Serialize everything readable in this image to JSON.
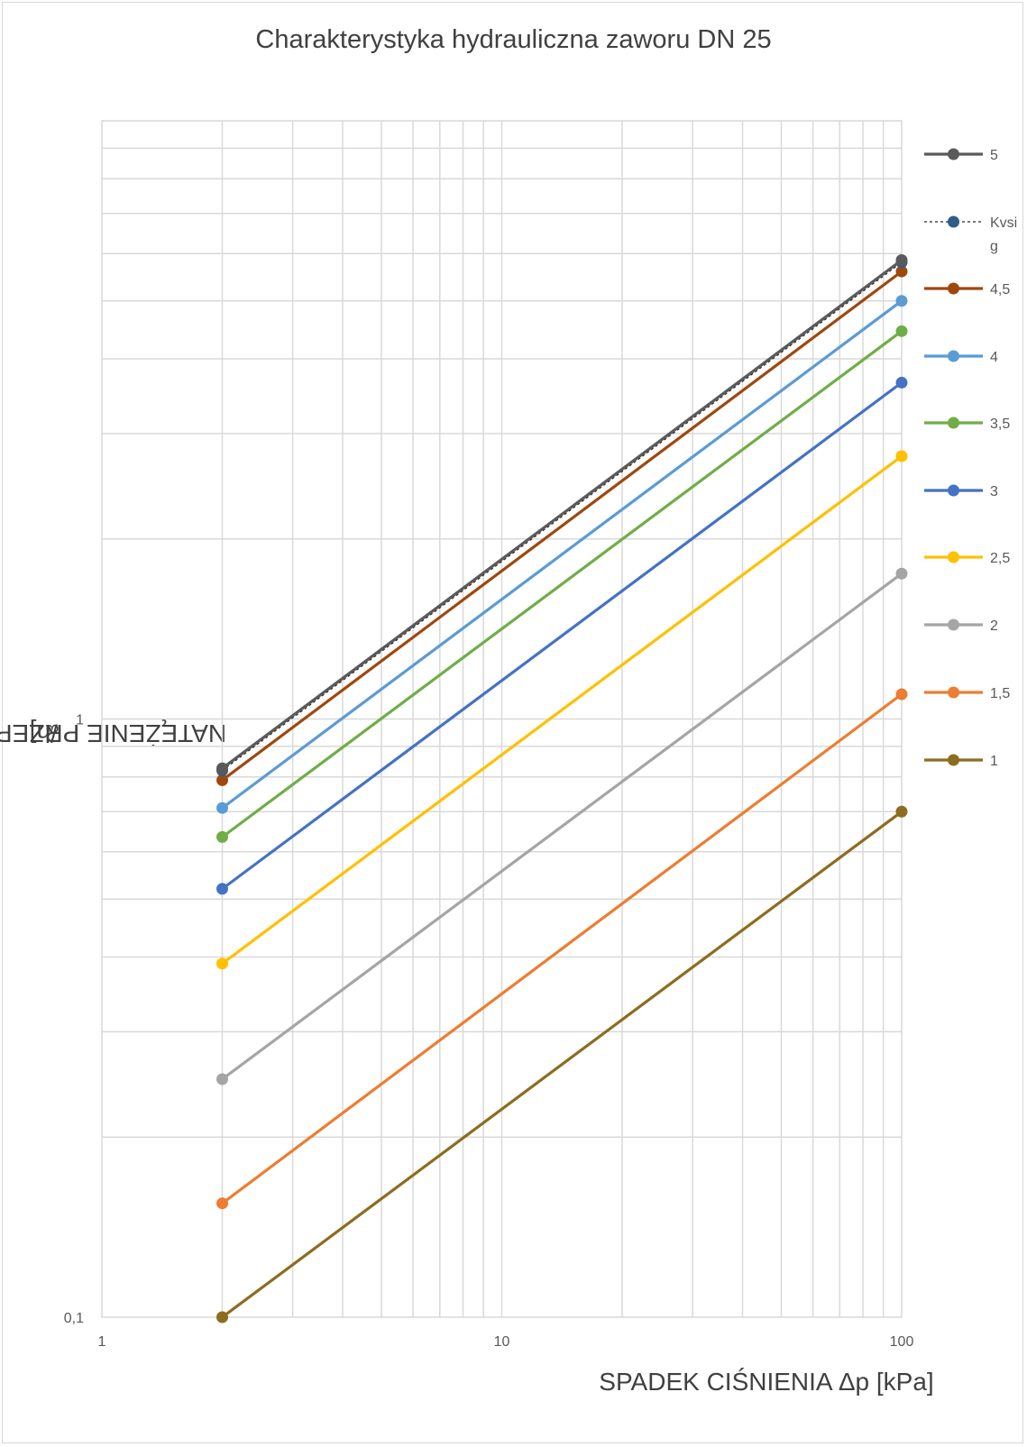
{
  "chart_data": {
    "type": "line",
    "title": "Charakterystyka hydrauliczna zaworu DN 25",
    "xlabel": "SPADEK CIŚNIENIA Δp  [kPa]",
    "ylabel_parts": [
      "NATĘŻENIE PRZEPŁYWU Q  [m",
      "3",
      "/h]"
    ],
    "x_scale": "log",
    "y_scale": "log",
    "xlim": [
      1,
      100
    ],
    "ylim": [
      0.1,
      10
    ],
    "x_ticks": [
      {
        "value": 1,
        "label": "1"
      },
      {
        "value": 10,
        "label": "10"
      },
      {
        "value": 100,
        "label": "100"
      }
    ],
    "y_ticks": [
      {
        "value": 0.1,
        "label": "0,1"
      },
      {
        "value": 1,
        "label": "1"
      }
    ],
    "grid": true,
    "legend_position": "right",
    "series": [
      {
        "name": "5",
        "color": "#5a5a5a",
        "dashed": false,
        "x": [
          2,
          100
        ],
        "y": [
          0.827,
          5.85
        ]
      },
      {
        "name": "Kvsig",
        "color": "#2f5d8a",
        "dashed": true,
        "x": [
          2,
          100
        ],
        "y": [
          0.82,
          5.8
        ]
      },
      {
        "name": "4,5",
        "color": "#9e480e",
        "dashed": false,
        "x": [
          2,
          100
        ],
        "y": [
          0.79,
          5.6
        ]
      },
      {
        "name": "4",
        "color": "#5b9bd5",
        "dashed": false,
        "x": [
          2,
          100
        ],
        "y": [
          0.71,
          5.0
        ]
      },
      {
        "name": "3,5",
        "color": "#70ad47",
        "dashed": false,
        "x": [
          2,
          100
        ],
        "y": [
          0.635,
          4.45
        ]
      },
      {
        "name": "3",
        "color": "#4472c4",
        "dashed": false,
        "x": [
          2,
          100
        ],
        "y": [
          0.52,
          3.65
        ]
      },
      {
        "name": "2,5",
        "color": "#ffc000",
        "dashed": false,
        "x": [
          2,
          100
        ],
        "y": [
          0.39,
          2.75
        ]
      },
      {
        "name": "2",
        "color": "#a5a5a5",
        "dashed": false,
        "x": [
          2,
          100
        ],
        "y": [
          0.25,
          1.75
        ]
      },
      {
        "name": "1,5",
        "color": "#ed7d31",
        "dashed": false,
        "x": [
          2,
          100
        ],
        "y": [
          0.155,
          1.1
        ]
      },
      {
        "name": "1",
        "color": "#8c6d1f",
        "dashed": false,
        "x": [
          2,
          100
        ],
        "y": [
          0.1,
          0.7
        ]
      }
    ]
  }
}
